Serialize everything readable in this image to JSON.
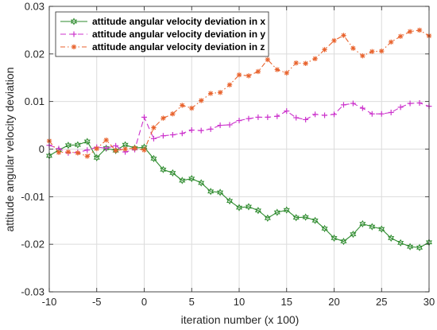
{
  "chart_data": {
    "type": "line",
    "xlabel": "iteration number (x 100)",
    "ylabel": "attitude angular velocity deviation",
    "xlim": [
      -10,
      30
    ],
    "ylim": [
      -0.03,
      0.03
    ],
    "xticks": [
      -10,
      -5,
      0,
      5,
      10,
      15,
      20,
      25,
      30
    ],
    "xtick_labels": [
      "-10",
      "-5",
      "0",
      "5",
      "10",
      "15",
      "20",
      "25",
      "30"
    ],
    "yticks": [
      -0.03,
      -0.02,
      -0.01,
      0,
      0.01,
      0.02,
      0.03
    ],
    "ytick_labels": [
      "-0.03",
      "-0.02",
      "-0.01",
      "0",
      "0.01",
      "0.02",
      "0.03"
    ],
    "grid": true,
    "legend_position": "top-left",
    "x": [
      -10,
      -9,
      -8,
      -7,
      -6,
      -5,
      -4,
      -3,
      -2,
      -1,
      0,
      1,
      2,
      3,
      4,
      5,
      6,
      7,
      8,
      9,
      10,
      11,
      12,
      13,
      14,
      15,
      16,
      17,
      18,
      19,
      20,
      21,
      22,
      23,
      24,
      25,
      26,
      27,
      28,
      29,
      30
    ],
    "series": [
      {
        "name": "attitude angular velocity deviation in x",
        "color": "#2e8b2e",
        "line_style": "solid",
        "marker": "hexagram",
        "values": [
          -0.0014,
          -0.0002,
          0.0008,
          0.0009,
          0.0016,
          -0.0018,
          0.0002,
          -0.0003,
          0.0009,
          0.0002,
          0.0004,
          -0.002,
          -0.0043,
          -0.005,
          -0.0066,
          -0.0062,
          -0.0071,
          -0.0089,
          -0.0091,
          -0.0109,
          -0.0123,
          -0.0121,
          -0.0129,
          -0.0145,
          -0.0133,
          -0.0128,
          -0.0144,
          -0.0143,
          -0.015,
          -0.0167,
          -0.0187,
          -0.0194,
          -0.0179,
          -0.0157,
          -0.0163,
          -0.0168,
          -0.0187,
          -0.0197,
          -0.0205,
          -0.0207,
          -0.0196
        ]
      },
      {
        "name": "attitude angular velocity deviation in y",
        "color": "#cc33cc",
        "line_style": "dashed",
        "marker": "plus",
        "values": [
          0.0008,
          0.0001,
          -0.0008,
          -0.0007,
          -0.0002,
          0.0004,
          0.0002,
          0.0007,
          -0.0006,
          -0.0001,
          0.0067,
          0.0022,
          0.0028,
          0.003,
          0.0033,
          0.004,
          0.0039,
          0.0042,
          0.005,
          0.0051,
          0.006,
          0.0064,
          0.0067,
          0.0067,
          0.0069,
          0.008,
          0.0066,
          0.0062,
          0.0073,
          0.0071,
          0.0073,
          0.0093,
          0.0096,
          0.0086,
          0.0074,
          0.0074,
          0.0077,
          0.0088,
          0.0096,
          0.0097,
          0.009
        ]
      },
      {
        "name": "attitude angular velocity deviation in z",
        "color": "#e8622c",
        "line_style": "dashdot",
        "marker": "star",
        "values": [
          0.0017,
          -0.0007,
          -0.0006,
          -0.0008,
          -0.0015,
          0.0001,
          0.0019,
          -0.0003,
          0.0,
          0.0002,
          -0.0002,
          0.0045,
          0.0065,
          0.0074,
          0.0092,
          0.0086,
          0.0102,
          0.0117,
          0.0119,
          0.0135,
          0.0156,
          0.0154,
          0.0163,
          0.0188,
          0.0167,
          0.016,
          0.0181,
          0.018,
          0.019,
          0.0209,
          0.0228,
          0.0239,
          0.0212,
          0.0196,
          0.0205,
          0.0206,
          0.0225,
          0.0237,
          0.0247,
          0.025,
          0.0238
        ]
      }
    ]
  }
}
